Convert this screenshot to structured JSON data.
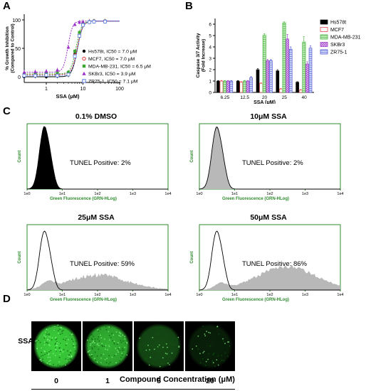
{
  "panels": {
    "A": {
      "letter": "A",
      "chart_data": {
        "type": "line",
        "ylabel": "% Growth Inhibition (Compared to Control)",
        "ylabel_lines": [
          "% Growth Inhibition",
          "(Compared to Control)"
        ],
        "xlabel": "SSA (μM)",
        "xscale": "log",
        "xlim": [
          0.25,
          100
        ],
        "ylim": [
          -10,
          110
        ],
        "yticks": [
          0,
          50,
          100
        ],
        "xticks": [
          1,
          10,
          100
        ],
        "xtick_labels": [
          "1",
          "10",
          "100"
        ],
        "series": [
          {
            "name": "Hs578t, IC50 = 7.0 μM",
            "ic50": 7.0,
            "hill": 6,
            "color": "#000000",
            "marker": "circle-filled",
            "x": [
              0.25,
              0.5,
              1,
              2,
              4,
              6,
              8,
              10,
              15,
              20,
              40
            ],
            "y": [
              0,
              1,
              0,
              1,
              3,
              40,
              75,
              93,
              97,
              98,
              98
            ]
          },
          {
            "name": "MCF7, IC50 = 7.0 μM",
            "ic50": 7.0,
            "hill": 6,
            "color": "#e03030",
            "marker": "circle-open",
            "x": [
              0.25,
              0.5,
              1,
              2,
              4,
              6,
              8,
              10,
              15,
              20,
              40
            ],
            "y": [
              4,
              4,
              5,
              4,
              5,
              38,
              74,
              92,
              96,
              98,
              98
            ]
          },
          {
            "name": "MDA-MB-231, IC50 = 6.5 μM",
            "ic50": 6.5,
            "hill": 6,
            "color": "#3aa832",
            "marker": "square-filled",
            "x": [
              0.25,
              0.5,
              1,
              2,
              4,
              6,
              8,
              10,
              15,
              20,
              40
            ],
            "y": [
              5,
              6,
              6,
              7,
              8,
              45,
              78,
              94,
              97,
              98,
              98
            ]
          },
          {
            "name": "SKBr3, IC50 = 3.9 μM",
            "ic50": 3.9,
            "hill": 7,
            "color": "#9b2fc8",
            "marker": "triangle-filled",
            "x": [
              0.25,
              0.5,
              1,
              2,
              4,
              6,
              8,
              10,
              15,
              20,
              40
            ],
            "y": [
              8,
              9,
              10,
              12,
              52,
              92,
              96,
              97,
              98,
              98,
              98
            ]
          },
          {
            "name": "ZR75-1, IC50 = 7.1 μM",
            "ic50": 7.1,
            "hill": 6,
            "color": "#5a7fe0",
            "marker": "square-open",
            "x": [
              0.25,
              0.5,
              1,
              2,
              4,
              6,
              8,
              10,
              15,
              20,
              40
            ],
            "y": [
              2,
              2,
              3,
              2,
              4,
              36,
              72,
              91,
              96,
              97,
              97
            ]
          }
        ],
        "legend_placement": "bottom-right"
      }
    },
    "B": {
      "letter": "B",
      "chart_data": {
        "type": "bar",
        "ylabel": "Caspase 3/7 Activity (Fold Increase)",
        "ylabel_lines": [
          "Caspase 3/7 Activity",
          "(Fold Increase)"
        ],
        "xlabel": "SSA (μM)",
        "categories": [
          "6.25",
          "12.5",
          "20",
          "25",
          "40"
        ],
        "ylim": [
          0,
          6.5
        ],
        "yticks": [
          0,
          1,
          2,
          3,
          4,
          5,
          6
        ],
        "series": [
          {
            "name": "Hs578t",
            "values": [
              1.0,
              1.0,
              2.0,
              1.9,
              0.9
            ],
            "errors": [
              0.05,
              0.05,
              0.1,
              0.1,
              0.05
            ],
            "fill": "#000000",
            "stroke": "#000000",
            "pattern": "solid"
          },
          {
            "name": "MCF7",
            "values": [
              1.0,
              0.9,
              0.8,
              0.3,
              0.2
            ],
            "errors": [
              0.05,
              0.05,
              0.05,
              0.05,
              0.05
            ],
            "fill": "#ffffff",
            "stroke": "#e03030",
            "pattern": "hollow"
          },
          {
            "name": "MDA-MB-231",
            "values": [
              1.0,
              1.0,
              5.0,
              6.1,
              4.4
            ],
            "errors": [
              0.05,
              0.05,
              0.15,
              0.1,
              0.5
            ],
            "fill": "#b9e9b3",
            "stroke": "#3aa832",
            "pattern": "lined"
          },
          {
            "name": "SKBr3",
            "values": [
              1.0,
              1.0,
              2.8,
              4.7,
              2.5
            ],
            "errors": [
              0.05,
              0.05,
              0.1,
              0.4,
              0.2
            ],
            "fill": "#d9b7ee",
            "stroke": "#9b2fc8",
            "pattern": "hatch"
          },
          {
            "name": "ZR75-1",
            "values": [
              1.0,
              1.3,
              2.8,
              3.8,
              3.9
            ],
            "errors": [
              0.05,
              0.1,
              0.1,
              0.2,
              0.2
            ],
            "fill": "#c8d5f7",
            "stroke": "#4a4ad0",
            "pattern": "lined"
          }
        ],
        "legend_placement": "top-right"
      }
    },
    "C": {
      "letter": "C",
      "histograms": [
        {
          "title": "0.1% DMSO",
          "tunel": "TUNEL Positive: 2%",
          "profile": "black"
        },
        {
          "title": "10μM SSA",
          "tunel": "TUNEL Positive: 2%",
          "profile": "gray-peak"
        },
        {
          "title": "25μM SSA",
          "tunel": "TUNEL Positive: 59%",
          "profile": "spread-59"
        },
        {
          "title": "50μM SSA",
          "tunel": "TUNEL Positive: 86%",
          "profile": "spread-86"
        }
      ],
      "ylabel": "Count",
      "xlabel": "Green Fluorescence (GRN-HLog)",
      "xtick_labels": [
        "1e0",
        "1e1",
        "1e2",
        "1e3",
        "1e4"
      ],
      "colors": {
        "axis": "#2e8b2e",
        "fill_gray": "#b8b8b8",
        "fill_black": "#000000"
      }
    },
    "D": {
      "letter": "D",
      "row_label": "SSA",
      "concentrations": [
        {
          "label": "0",
          "intensity": 1.0
        },
        {
          "label": "1",
          "intensity": 0.85
        },
        {
          "label": "5",
          "intensity": 0.35
        },
        {
          "label": "20",
          "intensity": 0.15
        }
      ],
      "xlabel": "Compound Concentration (μM)",
      "colors": {
        "green": "#3bd23b",
        "background": "#000000"
      }
    }
  }
}
